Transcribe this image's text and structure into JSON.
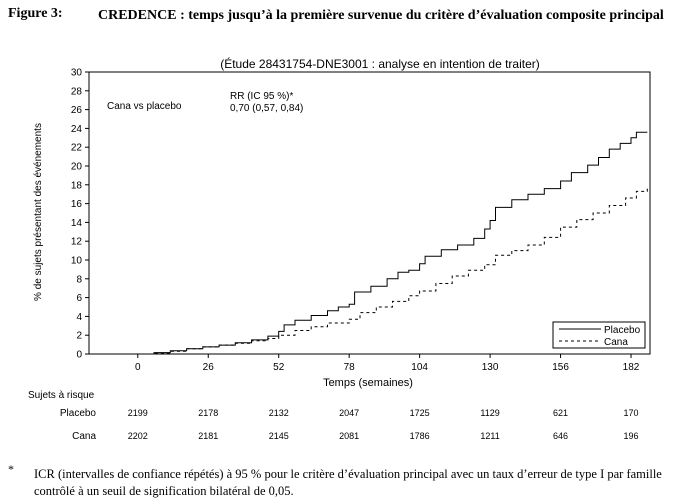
{
  "figure": {
    "label": "Figure 3:",
    "title": "CREDENCE : temps jusqu’à la première survenue du critère d’évaluation composite principal"
  },
  "chart_data": {
    "type": "line",
    "subtitle": "(Étude 28431754-DNE3001 : analyse en intention de traiter)",
    "xlabel": "Temps (semaines)",
    "ylabel": "% de sujets présentant des événements",
    "xlim": [
      -18,
      189
    ],
    "ylim": [
      0,
      30
    ],
    "xticks": [
      0,
      26,
      52,
      78,
      104,
      130,
      156,
      182
    ],
    "yticks": [
      0,
      2,
      4,
      6,
      8,
      10,
      12,
      14,
      16,
      18,
      20,
      22,
      24,
      26,
      28,
      30
    ],
    "grid": false,
    "legend_position": "bottom-right",
    "annotations": {
      "comparison": "Cana vs placebo",
      "hr_label": "RR (IC 95 %)*",
      "hr_value": "0,70 (0,57, 0,84)"
    },
    "series": [
      {
        "name": "Placebo",
        "style": "solid",
        "color": "#000000",
        "x": [
          0,
          6,
          12,
          18,
          24,
          30,
          36,
          42,
          48,
          52,
          54,
          58,
          64,
          70,
          74,
          78,
          80,
          86,
          92,
          96,
          100,
          104,
          106,
          112,
          118,
          124,
          128,
          130,
          132,
          138,
          144,
          150,
          156,
          160,
          166,
          170,
          174,
          178,
          182,
          184,
          188
        ],
        "y": [
          0,
          0.15,
          0.35,
          0.55,
          0.75,
          0.95,
          1.2,
          1.5,
          1.9,
          2.4,
          3.1,
          3.6,
          4.1,
          4.6,
          5.0,
          5.3,
          6.6,
          7.2,
          8.0,
          8.7,
          8.9,
          9.6,
          10.4,
          11.1,
          11.6,
          12.3,
          13.3,
          14.2,
          15.6,
          16.4,
          17.0,
          17.6,
          18.4,
          19.3,
          20.1,
          20.9,
          21.8,
          22.4,
          23.0,
          23.6,
          23.6
        ]
      },
      {
        "name": "Cana",
        "style": "dashed",
        "color": "#000000",
        "x": [
          0,
          6,
          12,
          18,
          24,
          30,
          36,
          42,
          48,
          52,
          58,
          64,
          70,
          78,
          82,
          88,
          94,
          100,
          104,
          110,
          116,
          122,
          128,
          132,
          138,
          144,
          150,
          156,
          162,
          168,
          174,
          180,
          184,
          188
        ],
        "y": [
          0,
          0.1,
          0.3,
          0.55,
          0.75,
          0.95,
          1.15,
          1.4,
          1.65,
          2.0,
          2.5,
          2.9,
          3.3,
          3.7,
          4.4,
          5.0,
          5.6,
          6.2,
          6.7,
          7.5,
          8.3,
          8.9,
          9.5,
          10.5,
          11.0,
          11.6,
          12.4,
          13.5,
          14.3,
          15.0,
          15.8,
          16.6,
          17.3,
          17.6
        ]
      }
    ]
  },
  "risk_table": {
    "header": "Sujets à risque",
    "rows": [
      {
        "label": "Placebo",
        "values": [
          "2199",
          "2178",
          "2132",
          "2047",
          "1725",
          "1129",
          "621",
          "170"
        ]
      },
      {
        "label": "Cana",
        "values": [
          "2202",
          "2181",
          "2145",
          "2081",
          "1786",
          "1211",
          "646",
          "196"
        ]
      }
    ]
  },
  "footnote": {
    "marker": "*",
    "text": "ICR (intervalles de confiance répétés) à 95 % pour le critère d’évaluation principal avec un taux d’erreur de type I par famille contrôlé à un seuil de signification bilatéral de 0,05."
  }
}
